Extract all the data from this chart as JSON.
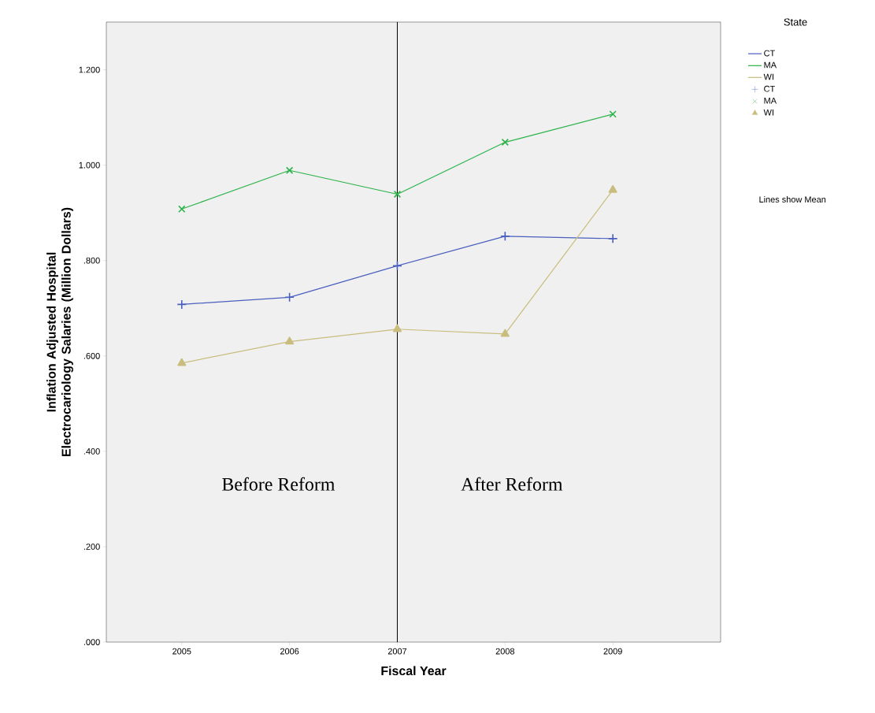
{
  "chart_data": {
    "type": "line",
    "xlabel": "Fiscal Year",
    "ylabel": "Inflation Adjusted Hospital Electrocariology Salaries (Million Dollars)",
    "legend_title": "State",
    "legend": "right",
    "grid": false,
    "line_style": "solid",
    "x": [
      2005,
      2006,
      2007,
      2008,
      2009
    ],
    "xlim": [
      2004.3,
      2010
    ],
    "xticks": [
      2005,
      2006,
      2007,
      2008,
      2009
    ],
    "ylim": [
      0,
      1.3
    ],
    "yticks": [
      {
        "value": 0,
        "label": ".000"
      },
      {
        "value": 0.2,
        "label": ".200"
      },
      {
        "value": 0.4,
        "label": ".400"
      },
      {
        "value": 0.6,
        "label": ".600"
      },
      {
        "value": 0.8,
        "label": ".800"
      },
      {
        "value": 1.0,
        "label": "1.000"
      },
      {
        "value": 1.2,
        "label": "1.200"
      }
    ],
    "series": [
      {
        "name": "CT",
        "color": "#4a5fbf",
        "marker": "plus",
        "values": [
          0.708,
          0.723,
          0.789,
          0.851,
          0.846
        ]
      },
      {
        "name": "MA",
        "color": "#2cb34a",
        "marker": "cross",
        "values": [
          0.908,
          0.989,
          0.939,
          1.048,
          1.107
        ]
      },
      {
        "name": "WI",
        "color": "#c9bd7e",
        "marker": "triangle",
        "values": [
          0.585,
          0.63,
          0.656,
          0.646,
          0.948
        ]
      }
    ],
    "ref_lines": [
      {
        "axis": "x",
        "value": 2007,
        "color": "#000000"
      }
    ],
    "annotations": [
      "Before Reform",
      "After Reform",
      "Lines show Mean"
    ]
  }
}
